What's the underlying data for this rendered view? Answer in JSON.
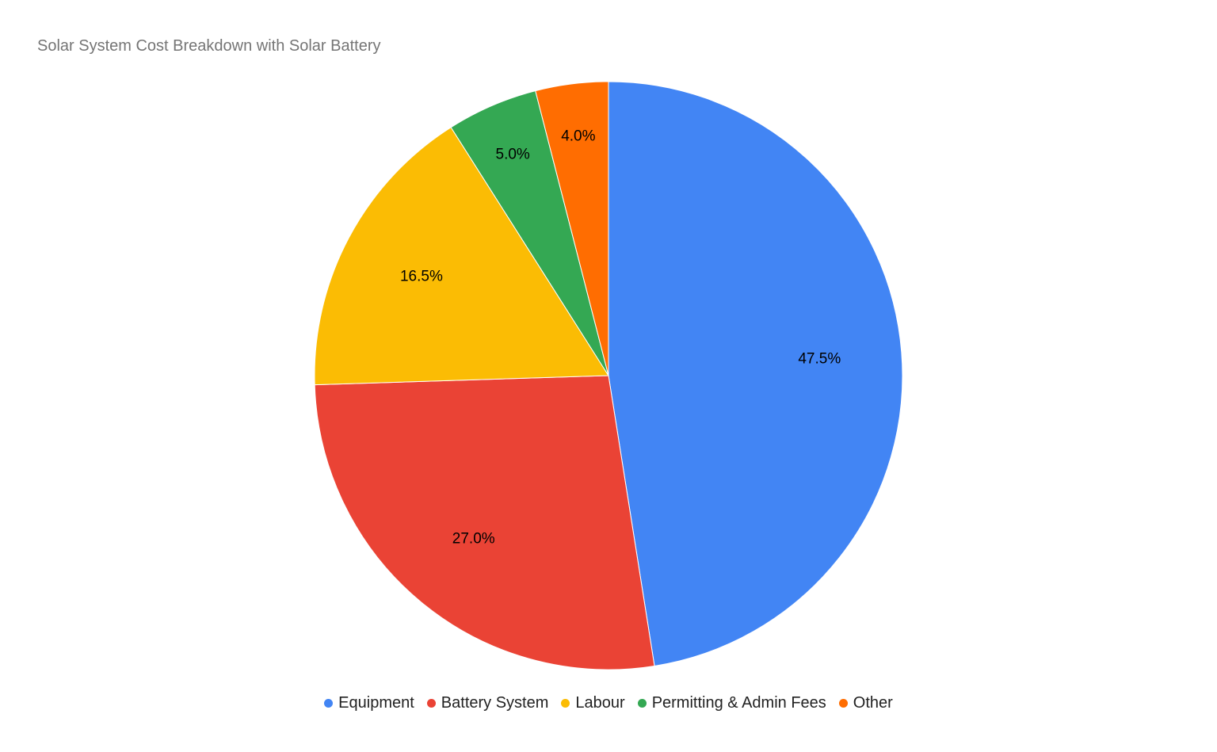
{
  "chart_data": {
    "type": "pie",
    "title": "Solar System Cost Breakdown with Solar Battery",
    "categories": [
      "Equipment",
      "Battery System",
      "Labour",
      "Permitting & Admin Fees",
      "Other"
    ],
    "values": [
      47.5,
      27.0,
      16.5,
      5.0,
      4.0
    ],
    "value_labels": [
      "47.5%",
      "27.0%",
      "16.5%",
      "5.0%",
      "4.0%"
    ],
    "colors": [
      "#4285F4",
      "#EA4335",
      "#FBBC04",
      "#34A853",
      "#FF6D01"
    ],
    "start_angle_deg": 0,
    "direction": "clockwise",
    "legend_position": "bottom"
  }
}
